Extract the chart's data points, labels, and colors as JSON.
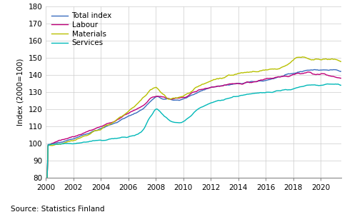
{
  "ylabel": "Index (2000=100)",
  "source": "Source: Statistics Finland",
  "xlim": [
    2000,
    2021.5
  ],
  "ylim": [
    80,
    180
  ],
  "yticks": [
    80,
    90,
    100,
    110,
    120,
    130,
    140,
    150,
    160,
    170,
    180
  ],
  "xticks": [
    2000,
    2002,
    2004,
    2006,
    2008,
    2010,
    2012,
    2014,
    2016,
    2018,
    2020
  ],
  "colors": {
    "total": "#3a6dbf",
    "labour": "#c0007a",
    "materials": "#b8c000",
    "services": "#00b8b8"
  },
  "grid_color": "#cccccc",
  "tick_fontsize": 7.5,
  "label_fontsize": 7.5,
  "legend_fontsize": 7.5,
  "source_fontsize": 7.5,
  "linewidth": 1.0
}
